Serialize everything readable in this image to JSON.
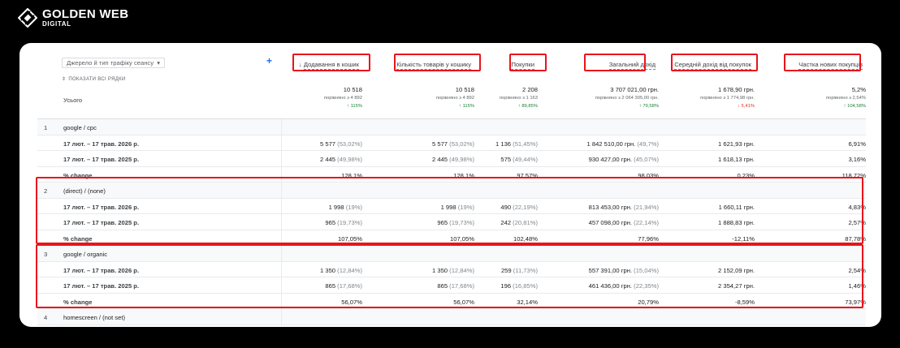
{
  "brand": {
    "name": "GOLDEN WEB",
    "sub": "DIGITAL",
    "accent": "#e8141c"
  },
  "controls": {
    "dimension_select": "Джерело й тип трафіку сеансу",
    "show_rows": "ПОКАЗАТИ ВСІ РЯДКИ",
    "add_icon": "plus-icon"
  },
  "totals_label": "Усього",
  "metrics": [
    {
      "name": "Додавання в кошик",
      "sorted": true,
      "total": "10 518",
      "compare": "порівняно з 4 892",
      "change": "↑ 115%",
      "trend": "up"
    },
    {
      "name": "Кількість товарів у кошику",
      "sorted": false,
      "total": "10 518",
      "compare": "порівняно з 4 892",
      "change": "↑ 115%",
      "trend": "up"
    },
    {
      "name": "Покупки",
      "sorted": false,
      "total": "2 208",
      "compare": "порівняно з 1 163",
      "change": "↑ 89,85%",
      "trend": "up"
    },
    {
      "name": "Загальний дохід",
      "sorted": false,
      "total": "3 707 021,00 грн.",
      "compare": "порівняно з 2 064 305,00 грн.",
      "change": "↑ 79,58%",
      "trend": "up"
    },
    {
      "name": "Середній дохід від покупок",
      "sorted": false,
      "total": "1 678,90 грн.",
      "compare": "порівняно з 1 774,98 грн.",
      "change": "↓ 5,41%",
      "trend": "down"
    },
    {
      "name": "Частка нових покупців",
      "sorted": false,
      "total": "5,2%",
      "compare": "порівняно з 2,54%",
      "change": "↑ 104,58%",
      "trend": "up"
    }
  ],
  "rows": [
    {
      "type": "group",
      "index": "1",
      "label": "google / cpc"
    },
    {
      "type": "sub",
      "label": "17 лют. – 17 трав. 2026 р.",
      "cells": [
        [
          "5 577",
          "(53,02%)"
        ],
        [
          "5 577",
          "(53,02%)"
        ],
        [
          "1 136",
          "(51,45%)"
        ],
        [
          "1 842 510,00 грн.",
          "(49,7%)"
        ],
        [
          "1 621,93 грн.",
          ""
        ],
        [
          "6,91%",
          ""
        ]
      ]
    },
    {
      "type": "sub",
      "label": "17 лют. – 17 трав. 2025 р.",
      "cells": [
        [
          "2 445",
          "(49,98%)"
        ],
        [
          "2 445",
          "(49,98%)"
        ],
        [
          "575",
          "(49,44%)"
        ],
        [
          "930 427,00 грн.",
          "(45,07%)"
        ],
        [
          "1 618,13 грн.",
          ""
        ],
        [
          "3,16%",
          ""
        ]
      ]
    },
    {
      "type": "sub",
      "label": "% change",
      "cells": [
        [
          "128,1%",
          ""
        ],
        [
          "128,1%",
          ""
        ],
        [
          "97,57%",
          ""
        ],
        [
          "98,03%",
          ""
        ],
        [
          "0,23%",
          ""
        ],
        [
          "118,72%",
          ""
        ]
      ]
    },
    {
      "type": "group",
      "index": "2",
      "label": "(direct) / (none)"
    },
    {
      "type": "sub",
      "label": "17 лют. – 17 трав. 2026 р.",
      "cells": [
        [
          "1 998",
          "(19%)"
        ],
        [
          "1 998",
          "(19%)"
        ],
        [
          "490",
          "(22,19%)"
        ],
        [
          "813 453,00 грн.",
          "(21,94%)"
        ],
        [
          "1 660,11 грн.",
          ""
        ],
        [
          "4,83%",
          ""
        ]
      ]
    },
    {
      "type": "sub",
      "label": "17 лют. – 17 трав. 2025 р.",
      "cells": [
        [
          "965",
          "(19,73%)"
        ],
        [
          "965",
          "(19,73%)"
        ],
        [
          "242",
          "(20,81%)"
        ],
        [
          "457 098,00 грн.",
          "(22,14%)"
        ],
        [
          "1 888,83 грн.",
          ""
        ],
        [
          "2,57%",
          ""
        ]
      ]
    },
    {
      "type": "sub",
      "label": "% change",
      "cells": [
        [
          "107,05%",
          ""
        ],
        [
          "107,05%",
          ""
        ],
        [
          "102,48%",
          ""
        ],
        [
          "77,96%",
          ""
        ],
        [
          "-12,11%",
          ""
        ],
        [
          "87,78%",
          ""
        ]
      ]
    },
    {
      "type": "group",
      "index": "3",
      "label": "google / organic"
    },
    {
      "type": "sub",
      "label": "17 лют. – 17 трав. 2026 р.",
      "cells": [
        [
          "1 350",
          "(12,84%)"
        ],
        [
          "1 350",
          "(12,84%)"
        ],
        [
          "259",
          "(11,73%)"
        ],
        [
          "557 391,00 грн.",
          "(15,04%)"
        ],
        [
          "2 152,09 грн.",
          ""
        ],
        [
          "2,54%",
          ""
        ]
      ]
    },
    {
      "type": "sub",
      "label": "17 лют. – 17 трав. 2025 р.",
      "cells": [
        [
          "865",
          "(17,68%)"
        ],
        [
          "865",
          "(17,68%)"
        ],
        [
          "196",
          "(16,85%)"
        ],
        [
          "461 436,00 грн.",
          "(22,35%)"
        ],
        [
          "2 354,27 грн.",
          ""
        ],
        [
          "1,46%",
          ""
        ]
      ]
    },
    {
      "type": "sub",
      "label": "% change",
      "cells": [
        [
          "56,07%",
          ""
        ],
        [
          "56,07%",
          ""
        ],
        [
          "32,14%",
          ""
        ],
        [
          "20,79%",
          ""
        ],
        [
          "-8,59%",
          ""
        ],
        [
          "73,97%",
          ""
        ]
      ]
    },
    {
      "type": "group",
      "index": "4",
      "label": "homescreen / (not set)"
    }
  ]
}
